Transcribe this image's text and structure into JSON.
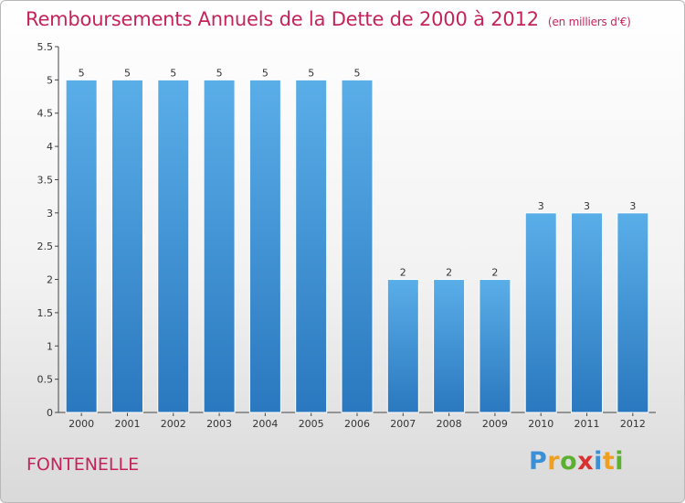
{
  "header": {
    "title": "Remboursements Annuels de la Dette de 2000 à 2012",
    "unit": "(en milliers d'€)"
  },
  "footer": {
    "town": "FONTENELLE",
    "logo_letters": [
      "P",
      "r",
      "o",
      "x",
      "i",
      "t",
      "i"
    ],
    "logo_colors": [
      "#3a8fd6",
      "#f0a020",
      "#5bb030",
      "#d93030",
      "#3a8fd6",
      "#f0a020",
      "#5bb030"
    ]
  },
  "colors": {
    "title": "#c4245a",
    "bar_top": "#5aaee8",
    "bar_bottom": "#2a78bf"
  },
  "chart_data": {
    "type": "bar",
    "title": "Remboursements Annuels de la Dette de 2000 à 2012",
    "categories": [
      "2000",
      "2001",
      "2002",
      "2003",
      "2004",
      "2005",
      "2006",
      "2007",
      "2008",
      "2009",
      "2010",
      "2011",
      "2012"
    ],
    "values": [
      5,
      5,
      5,
      5,
      5,
      5,
      5,
      2,
      2,
      2,
      3,
      3,
      3
    ],
    "data_labels": [
      "5",
      "5",
      "5",
      "5",
      "5",
      "5",
      "5",
      "2",
      "2",
      "2",
      "3",
      "3",
      "3"
    ],
    "yticks": [
      "0",
      "0.5",
      "1",
      "1.5",
      "2",
      "2.5",
      "3",
      "3.5",
      "4",
      "4.5",
      "5",
      "5.5"
    ],
    "ylim": [
      0,
      5.5
    ],
    "xlabel": "",
    "ylabel": "",
    "grid": false
  }
}
